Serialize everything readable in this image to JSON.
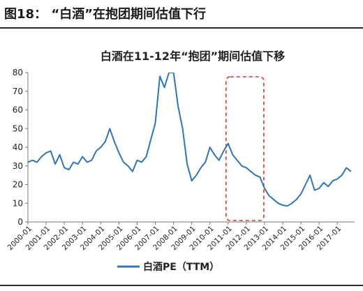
{
  "figure_title": "图18：  “白酒”在抱团期间估值下行",
  "chart_data": {
    "type": "line",
    "title": "白酒在11-12年“抱团”期间估值下移",
    "xlabel": "",
    "ylabel": "",
    "ylim": [
      0,
      80
    ],
    "y_ticks": [
      "0",
      "10",
      "20",
      "30",
      "40",
      "50",
      "60",
      "70",
      "80"
    ],
    "x_ticks": [
      "2000-01",
      "2001-01",
      "2002-01",
      "2003-01",
      "2004-01",
      "2005-01",
      "2006-01",
      "2007-01",
      "2008-01",
      "2009-01",
      "2010-01",
      "2011-01",
      "2012-01",
      "2013-01",
      "2014-01",
      "2015-01",
      "2016-01",
      "2017-01"
    ],
    "grid": false,
    "legend_position": "bottom",
    "highlight": {
      "from": "2011-01",
      "to": "2013-01",
      "style": "red-dashed-box"
    },
    "series": [
      {
        "name": "白酒PE（TTM）",
        "color": "#2E75B6",
        "x": [
          2000.0,
          2000.25,
          2000.5,
          2000.75,
          2001.0,
          2001.25,
          2001.5,
          2001.75,
          2002.0,
          2002.25,
          2002.5,
          2002.75,
          2003.0,
          2003.25,
          2003.5,
          2003.75,
          2004.0,
          2004.25,
          2004.5,
          2004.75,
          2005.0,
          2005.25,
          2005.5,
          2005.75,
          2006.0,
          2006.25,
          2006.5,
          2006.75,
          2007.0,
          2007.25,
          2007.5,
          2007.75,
          2008.0,
          2008.25,
          2008.5,
          2008.75,
          2009.0,
          2009.25,
          2009.5,
          2009.75,
          2010.0,
          2010.25,
          2010.5,
          2010.75,
          2011.0,
          2011.25,
          2011.5,
          2011.75,
          2012.0,
          2012.25,
          2012.5,
          2012.75,
          2013.0,
          2013.25,
          2013.5,
          2013.75,
          2014.0,
          2014.25,
          2014.5,
          2014.75,
          2015.0,
          2015.25,
          2015.5,
          2015.75,
          2016.0,
          2016.25,
          2016.5,
          2016.75,
          2017.0,
          2017.25,
          2017.5,
          2017.75
        ],
        "values": [
          32,
          33,
          32,
          35,
          37,
          38,
          31,
          36,
          29,
          28,
          32,
          31,
          35,
          32,
          33,
          38,
          40,
          43,
          50,
          43,
          37,
          32,
          30,
          27,
          33,
          32,
          35,
          44,
          53,
          78,
          72,
          80,
          80,
          62,
          50,
          31,
          22,
          25,
          29,
          32,
          40,
          36,
          33,
          38,
          42,
          36,
          33,
          30,
          29,
          27,
          25,
          24,
          18,
          14,
          12,
          10,
          9,
          8.5,
          10,
          12,
          15,
          20,
          25,
          17,
          18,
          21,
          19,
          22,
          23,
          25,
          29,
          27
        ]
      }
    ]
  }
}
